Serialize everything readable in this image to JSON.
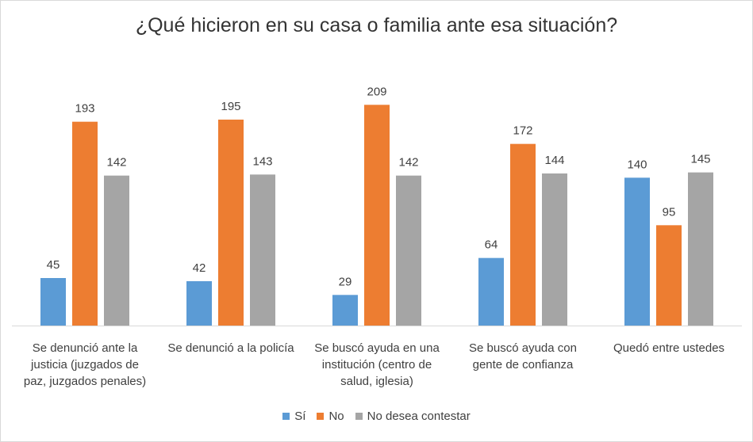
{
  "chart_data": {
    "type": "bar",
    "title": "¿Qué hicieron en su casa o familia ante esa situación?",
    "categories": [
      [
        "Se denunció ante la",
        "justicia (juzgados de",
        "paz, juzgados penales)"
      ],
      [
        "Se denunció a la policía"
      ],
      [
        "Se buscó ayuda en una",
        "institución (centro de",
        "salud, iglesia)"
      ],
      [
        "Se buscó ayuda con",
        "gente de confianza"
      ],
      [
        "Quedó entre ustedes"
      ]
    ],
    "series": [
      {
        "name": "Sí",
        "color": "#5b9bd5",
        "values": [
          45,
          42,
          29,
          64,
          140
        ]
      },
      {
        "name": "No",
        "color": "#ed7d31",
        "values": [
          193,
          195,
          209,
          172,
          95
        ]
      },
      {
        "name": "No desea contestar",
        "color": "#a5a5a5",
        "values": [
          142,
          143,
          142,
          144,
          145
        ]
      }
    ],
    "ylim": [
      0,
      210
    ],
    "grid": false,
    "legend_position": "bottom"
  }
}
